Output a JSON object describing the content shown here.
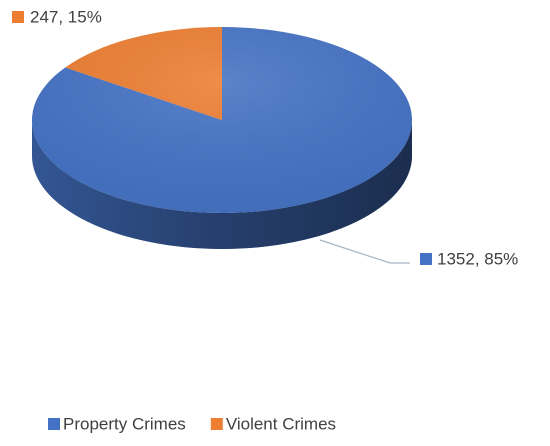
{
  "chart_data": {
    "type": "pie",
    "categories": [
      "Property Crimes",
      "Violent Crimes"
    ],
    "values": [
      1352,
      247
    ],
    "value_labels": [
      "1352, 85%",
      "247, 15%"
    ],
    "colors": [
      "#4472c4",
      "#ed7d31"
    ],
    "legend": "bottom"
  }
}
